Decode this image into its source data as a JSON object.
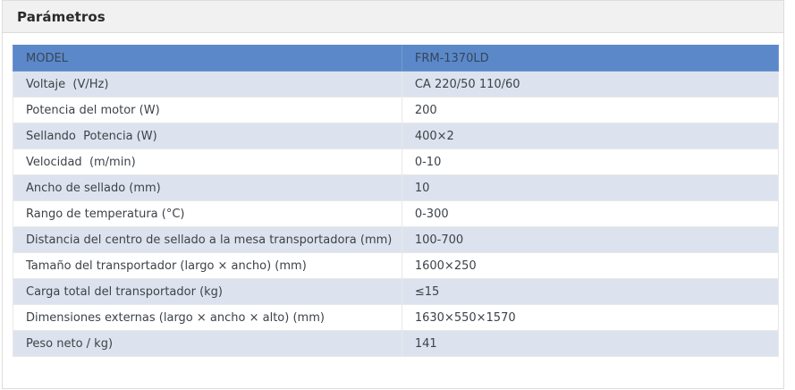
{
  "panel": {
    "title": "Parámetros"
  },
  "table": {
    "header": {
      "label": "MODEL",
      "value": "FRM-1370LD"
    },
    "rows": [
      {
        "label": "Voltaje  (V/Hz)",
        "value": "CA 220/50 110/60"
      },
      {
        "label": "Potencia del motor (W)",
        "value": "200"
      },
      {
        "label": "Sellando  Potencia (W)",
        "value": "400×2"
      },
      {
        "label": "Velocidad  (m/min)",
        "value": "0-10"
      },
      {
        "label": "Ancho de sellado (mm)",
        "value": "10"
      },
      {
        "label": "Rango de temperatura (°C)",
        "value": "0-300"
      },
      {
        "label": "Distancia del centro de sellado a la mesa transportadora (mm)",
        "value": "100-700"
      },
      {
        "label": "Tamaño del transportador (largo × ancho) (mm)",
        "value": "1600×250"
      },
      {
        "label": "Carga total del transportador (kg)",
        "value": "≤15"
      },
      {
        "label": "Dimensiones externas (largo × ancho × alto) (mm)",
        "value": "1630×550×1570"
      },
      {
        "label": "Peso neto / kg)",
        "value": "141"
      }
    ]
  },
  "colors": {
    "header_row_blue": "#5b88c9",
    "alt_row_blue": "#dde3ee",
    "panel_header_bg": "#f1f1f1",
    "panel_border": "#dddddd",
    "body_text": "#3d4248",
    "header_text": "#36465a"
  }
}
